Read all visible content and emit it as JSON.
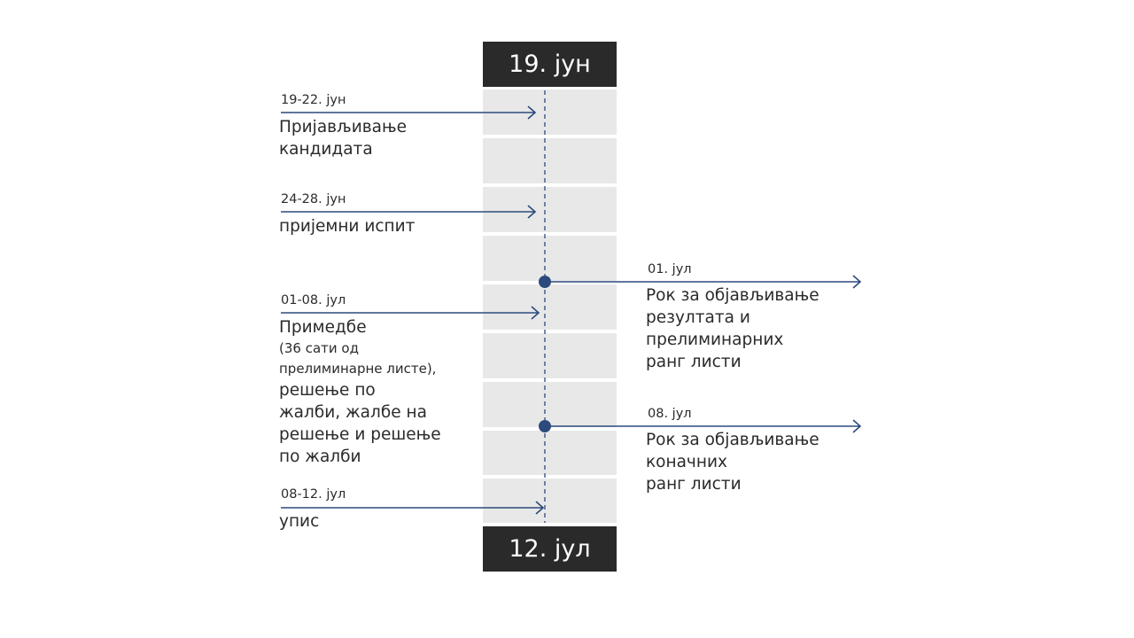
{
  "timeline": {
    "start_label": "19. јун",
    "end_label": "12. јул",
    "accent_color": "#2c4a7c",
    "left_events": [
      {
        "date": "19-22. јун",
        "lines": [
          "Пријављивање",
          "кандидата"
        ]
      },
      {
        "date": "24-28. јун",
        "lines": [
          "пријемни испит"
        ]
      },
      {
        "date": "01-08. јул",
        "lines": [
          "Примедбе"
        ],
        "small_lines": [
          "(36 сати од",
          "прелиминарне листе),"
        ],
        "lines_after": [
          "решење по",
          "жалби, жалбе на",
          "решење и решење",
          "по жалби"
        ]
      },
      {
        "date": "08-12. јул",
        "lines": [
          "упис"
        ]
      }
    ],
    "right_events": [
      {
        "date": "01. јул",
        "lines": [
          "Рок за објављивање",
          "резултата и",
          "прелиминарних",
          "ранг листи"
        ]
      },
      {
        "date": "08. јул",
        "lines": [
          "Рок за објављивање",
          "коначних",
          "ранг листи"
        ]
      }
    ]
  }
}
